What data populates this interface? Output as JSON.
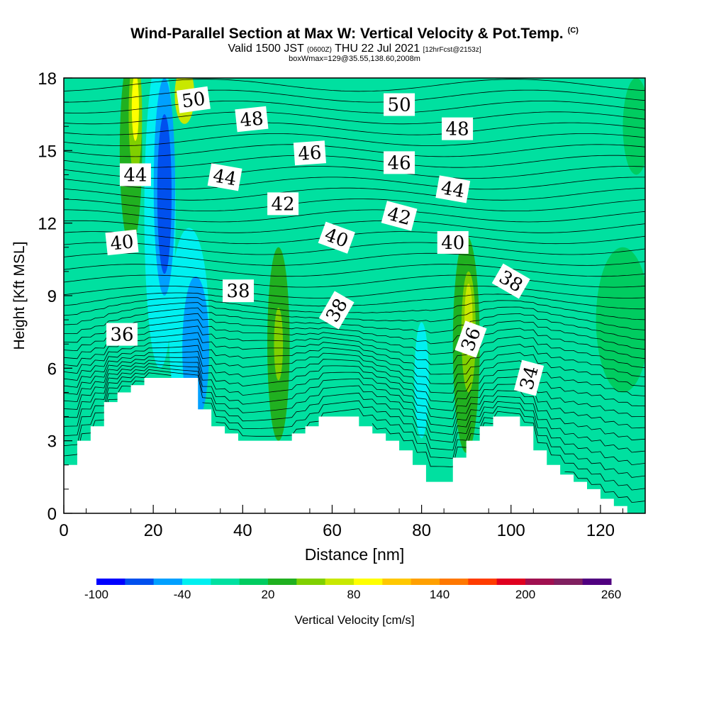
{
  "header": {
    "title_main": "Wind-Parallel Section at Max W: Vertical Velocity & Pot.Temp.",
    "title_c": "(C)",
    "line2_a": "Valid 1500 JST",
    "line2_b": "(0600Z)",
    "line2_c": "THU 22 Jul 2021",
    "line2_d": "[12hrFcst@2153z]",
    "line3": "boxWmax=129@35.55,138.60,2008m"
  },
  "chart_data": {
    "type": "heatmap",
    "xlabel": "Distance [nm]",
    "ylabel": "Height [Kft MSL]",
    "xlim": [
      0,
      130
    ],
    "ylim": [
      0,
      18
    ],
    "x_ticks": [
      "0",
      "20",
      "40",
      "60",
      "80",
      "100",
      "120"
    ],
    "y_ticks": [
      "0",
      "3",
      "6",
      "9",
      "12",
      "15",
      "18"
    ],
    "colorbar": {
      "label": "Vertical Velocity [cm/s]",
      "tick_labels": [
        "-100",
        "-40",
        "20",
        "80",
        "140",
        "200",
        "260"
      ],
      "bins": [
        "#0000ff",
        "#0050ee",
        "#00a0ff",
        "#00f0f0",
        "#00e0a0",
        "#00cc60",
        "#20b020",
        "#80d000",
        "#c8e800",
        "#ffff00",
        "#ffc800",
        "#ffa000",
        "#ff7800",
        "#ff3c00",
        "#e00020",
        "#a01050",
        "#802060",
        "#500080"
      ]
    },
    "background_value_color": "#00e0a0",
    "terrain_profile": [
      [
        0,
        2
      ],
      [
        3,
        2
      ],
      [
        3,
        3
      ],
      [
        6,
        3
      ],
      [
        6,
        3.6
      ],
      [
        9,
        3.6
      ],
      [
        9,
        4.6
      ],
      [
        12,
        4.6
      ],
      [
        12,
        5
      ],
      [
        15,
        5
      ],
      [
        15,
        5.3
      ],
      [
        18,
        5.3
      ],
      [
        18,
        5.6
      ],
      [
        30,
        5.6
      ],
      [
        30,
        4.3
      ],
      [
        33,
        4.3
      ],
      [
        33,
        3.6
      ],
      [
        36,
        3.6
      ],
      [
        36,
        3.3
      ],
      [
        39,
        3.3
      ],
      [
        39,
        3
      ],
      [
        51,
        3
      ],
      [
        51,
        3.3
      ],
      [
        54,
        3.3
      ],
      [
        54,
        3.6
      ],
      [
        57,
        3.6
      ],
      [
        57,
        4
      ],
      [
        66,
        4
      ],
      [
        66,
        3.6
      ],
      [
        69,
        3.6
      ],
      [
        69,
        3.3
      ],
      [
        72,
        3.3
      ],
      [
        72,
        3
      ],
      [
        75,
        3
      ],
      [
        75,
        2.6
      ],
      [
        78,
        2.6
      ],
      [
        78,
        2
      ],
      [
        81,
        2
      ],
      [
        81,
        1.3
      ],
      [
        87,
        1.3
      ],
      [
        87,
        2.3
      ],
      [
        90,
        2.3
      ],
      [
        90,
        3
      ],
      [
        93,
        3
      ],
      [
        93,
        3.6
      ],
      [
        96,
        3.6
      ],
      [
        96,
        4
      ],
      [
        102,
        4
      ],
      [
        102,
        3.6
      ],
      [
        105,
        3.6
      ],
      [
        105,
        2.6
      ],
      [
        108,
        2.6
      ],
      [
        108,
        2
      ],
      [
        111,
        2
      ],
      [
        111,
        1.6
      ],
      [
        114,
        1.6
      ],
      [
        114,
        1.3
      ],
      [
        117,
        1.3
      ],
      [
        117,
        1
      ],
      [
        120,
        1
      ],
      [
        120,
        0.6
      ],
      [
        123,
        0.6
      ],
      [
        123,
        0.3
      ],
      [
        126,
        0.3
      ],
      [
        126,
        0
      ],
      [
        130,
        0
      ]
    ],
    "velocity_regions": [
      {
        "value": 0,
        "x": 21.5,
        "y": 12.5,
        "rx": 3.5,
        "ry": 6.5,
        "color": "#00f0f0"
      },
      {
        "value": -40,
        "x": 22.5,
        "y": 13.5,
        "rx": 2.4,
        "ry": 4.5,
        "color": "#00a0ff"
      },
      {
        "value": -80,
        "x": 22.5,
        "y": 13.2,
        "rx": 1.6,
        "ry": 3.3,
        "color": "#0050ee"
      },
      {
        "value": 0,
        "x": 28,
        "y": 7.6,
        "rx": 4.5,
        "ry": 4.2,
        "color": "#00f0f0"
      },
      {
        "value": -40,
        "x": 29.5,
        "y": 6.8,
        "rx": 3,
        "ry": 3,
        "color": "#00a0ff"
      },
      {
        "value": 0,
        "x": 80,
        "y": 5.5,
        "rx": 1.6,
        "ry": 2.4,
        "color": "#00f0f0"
      },
      {
        "value": 30,
        "x": 15,
        "y": 15,
        "rx": 2.5,
        "ry": 4,
        "color": "#20b020"
      },
      {
        "value": 50,
        "x": 16,
        "y": 16.5,
        "rx": 1.5,
        "ry": 2.5,
        "color": "#80d000"
      },
      {
        "value": 80,
        "x": 16,
        "y": 16.8,
        "rx": 0.8,
        "ry": 1.4,
        "color": "#ffff00"
      },
      {
        "value": 60,
        "x": 27,
        "y": 17.3,
        "rx": 2.2,
        "ry": 1.2,
        "color": "#c8e800"
      },
      {
        "value": 30,
        "x": 48,
        "y": 7,
        "rx": 2.5,
        "ry": 4,
        "color": "#20b020"
      },
      {
        "value": 50,
        "x": 48,
        "y": 7,
        "rx": 1,
        "ry": 1.5,
        "color": "#80d000"
      },
      {
        "value": 30,
        "x": 90,
        "y": 7,
        "rx": 3,
        "ry": 4.5,
        "color": "#20b020"
      },
      {
        "value": 50,
        "x": 90.5,
        "y": 7.5,
        "rx": 1.6,
        "ry": 2.5,
        "color": "#80d000"
      },
      {
        "value": 70,
        "x": 90.5,
        "y": 8,
        "rx": 0.9,
        "ry": 1.5,
        "color": "#c8e800"
      },
      {
        "value": 20,
        "x": 128,
        "y": 16,
        "rx": 3,
        "ry": 2,
        "color": "#00cc60"
      },
      {
        "value": 20,
        "x": 125,
        "y": 8,
        "rx": 6,
        "ry": 3,
        "color": "#00cc60"
      }
    ],
    "pot_temp_labels": [
      {
        "text": "50",
        "x": 29,
        "y": 17.1,
        "rot": -8
      },
      {
        "text": "48",
        "x": 42,
        "y": 16.3,
        "rot": -6
      },
      {
        "text": "46",
        "x": 55,
        "y": 14.9,
        "rot": -4
      },
      {
        "text": "44",
        "x": 36,
        "y": 13.9,
        "rot": 10
      },
      {
        "text": "44",
        "x": 16,
        "y": 14,
        "rot": 0
      },
      {
        "text": "42",
        "x": 49,
        "y": 12.8,
        "rot": 0
      },
      {
        "text": "40",
        "x": 13,
        "y": 11.2,
        "rot": -6
      },
      {
        "text": "40",
        "x": 61,
        "y": 11.4,
        "rot": 20
      },
      {
        "text": "38",
        "x": 39,
        "y": 9.2,
        "rot": 0
      },
      {
        "text": "38",
        "x": 61,
        "y": 8.4,
        "rot": -60
      },
      {
        "text": "36",
        "x": 13,
        "y": 7.4,
        "rot": 0
      },
      {
        "text": "50",
        "x": 75,
        "y": 16.9,
        "rot": 0
      },
      {
        "text": "48",
        "x": 88,
        "y": 15.9,
        "rot": 0
      },
      {
        "text": "46",
        "x": 75,
        "y": 14.5,
        "rot": 0
      },
      {
        "text": "44",
        "x": 87,
        "y": 13.4,
        "rot": 10
      },
      {
        "text": "42",
        "x": 75,
        "y": 12.3,
        "rot": 15
      },
      {
        "text": "40",
        "x": 87,
        "y": 11.2,
        "rot": 0
      },
      {
        "text": "38",
        "x": 100,
        "y": 9.6,
        "rot": 30
      },
      {
        "text": "36",
        "x": 91,
        "y": 7.2,
        "rot": -70
      },
      {
        "text": "34",
        "x": 104,
        "y": 5.6,
        "rot": -75
      }
    ]
  }
}
